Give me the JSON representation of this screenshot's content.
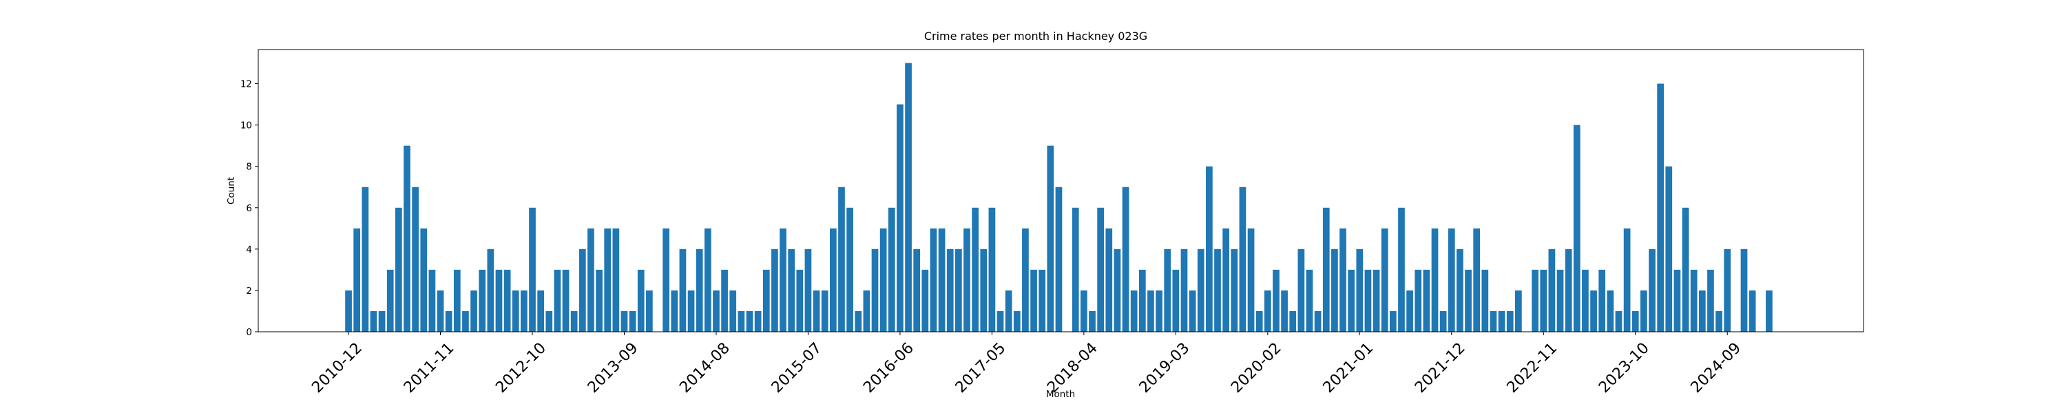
{
  "chart_data": {
    "type": "bar",
    "title": "Crime rates per month in Hackney 023G",
    "xlabel": "Month",
    "ylabel": "Count",
    "ylim": [
      0,
      13.65
    ],
    "yticks": [
      0,
      2,
      4,
      6,
      8,
      10,
      12
    ],
    "xticks": [
      "2010-12",
      "2011-11",
      "2012-10",
      "2013-09",
      "2014-08",
      "2015-07",
      "2016-06",
      "2017-05",
      "2018-04",
      "2019-03",
      "2020-02",
      "2021-01",
      "2021-12",
      "2022-11",
      "2023-10",
      "2024-09"
    ],
    "xtick_start": "2010-12",
    "xtick_step_months": 11,
    "start_month": "2010-12",
    "bar_color": "#1f77b4",
    "grid": false,
    "values": [
      2,
      5,
      7,
      1,
      1,
      3,
      6,
      9,
      7,
      5,
      3,
      2,
      1,
      3,
      1,
      2,
      3,
      4,
      3,
      3,
      2,
      2,
      6,
      2,
      1,
      3,
      3,
      1,
      4,
      5,
      3,
      5,
      5,
      1,
      1,
      3,
      2,
      null,
      5,
      2,
      4,
      2,
      4,
      5,
      2,
      3,
      2,
      1,
      1,
      1,
      3,
      4,
      5,
      4,
      3,
      4,
      2,
      2,
      5,
      7,
      6,
      1,
      2,
      4,
      5,
      6,
      11,
      13,
      4,
      3,
      5,
      5,
      4,
      4,
      5,
      6,
      4,
      6,
      1,
      2,
      1,
      5,
      3,
      3,
      9,
      7,
      null,
      6,
      2,
      1,
      6,
      5,
      4,
      7,
      2,
      3,
      2,
      2,
      4,
      3,
      4,
      2,
      4,
      8,
      4,
      5,
      4,
      7,
      5,
      1,
      2,
      3,
      2,
      1,
      4,
      3,
      1,
      6,
      4,
      5,
      3,
      4,
      3,
      3,
      5,
      1,
      6,
      2,
      3,
      3,
      5,
      1,
      5,
      4,
      3,
      5,
      3,
      1,
      1,
      1,
      2,
      null,
      3,
      3,
      4,
      3,
      4,
      10,
      3,
      2,
      3,
      2,
      1,
      5,
      1,
      2,
      4,
      12,
      8,
      3,
      6,
      3,
      2,
      3,
      1,
      4,
      null,
      4,
      2,
      null,
      2
    ]
  }
}
